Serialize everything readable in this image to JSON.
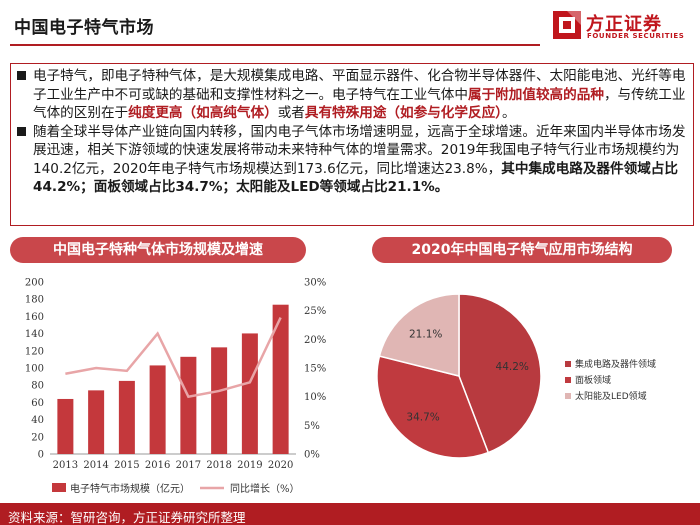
{
  "header": {
    "title": "中国电子特气市场",
    "logo_cn": "方正证券",
    "logo_en": "FOUNDER SECURITIES"
  },
  "bullets": [
    {
      "runs": [
        {
          "t": "电子特气，即电子特种气体，是大规模集成电路、平面显示器件、化合物半导体器件、太阳能电池、光纤等电子工业生产中不可或缺的基础和支撑性材料之一。电子特气在工业气体中",
          "s": ""
        },
        {
          "t": "属于附加值较高的品种",
          "s": "hl"
        },
        {
          "t": "，与传统工业气体的区别在于",
          "s": ""
        },
        {
          "t": "纯度更高（如高纯气体）",
          "s": "hl"
        },
        {
          "t": "或者",
          "s": ""
        },
        {
          "t": "具有特殊用途（如参与化学反应）",
          "s": "hl"
        },
        {
          "t": "。",
          "s": ""
        }
      ]
    },
    {
      "runs": [
        {
          "t": "随着全球半导体产业链向国内转移，国内电子气体市场增速明显，远高于全球增速。近年来国内半导体市场发展迅速，相关下游领域的快速发展将带动未来特种气体的增量需求。2019年我国电子特气行业市场规模约为140.2亿元，2020年电子特气市场规模达到173.6亿元，同比增速达23.8%，",
          "s": ""
        },
        {
          "t": "其中集成电路及器件领域占比44.2%；面板领域占比34.7%；太阳能及LED等领域占比21.1%。",
          "s": "bd"
        }
      ]
    }
  ],
  "left_chart_title": "中国电子特种气体市场规模及增速",
  "right_chart_title": "2020年中国电子特气应用市场结构",
  "chart_data": [
    {
      "type": "bar",
      "categories": [
        "2013",
        "2014",
        "2015",
        "2016",
        "2017",
        "2018",
        "2019",
        "2020"
      ],
      "series": [
        {
          "name": "电子特气市场规模（亿元）",
          "type": "bar",
          "axis": "left",
          "values": [
            64,
            74,
            85,
            103,
            113,
            124,
            140.2,
            173.6
          ]
        },
        {
          "name": "同比增长（%）",
          "type": "line",
          "axis": "right",
          "values": [
            14,
            15,
            14.5,
            21,
            10,
            11,
            12.5,
            23.8
          ]
        }
      ],
      "yticks_left": [
        "0",
        "20",
        "40",
        "60",
        "80",
        "100",
        "120",
        "140",
        "160",
        "180",
        "200"
      ],
      "yticks_right": [
        "0%",
        "5%",
        "10%",
        "15%",
        "20%",
        "25%",
        "30%"
      ],
      "ylim_left": [
        0,
        200
      ],
      "ylim_right": [
        0,
        30
      ],
      "legend_position": "bottom",
      "colors": {
        "bar": "#c4383c",
        "line": "#e8a5a7"
      }
    },
    {
      "type": "pie",
      "slices": [
        {
          "label": "集成电路及器件领域",
          "value": 44.2,
          "display": "44.2%",
          "color": "#b83a3f"
        },
        {
          "label": "面板领域",
          "value": 34.7,
          "display": "34.7%",
          "color": "#c03a3f"
        },
        {
          "label": "太阳能及LED领域",
          "value": 21.1,
          "display": "21.1%",
          "color": "#e0b6b4"
        }
      ],
      "legend_position": "right"
    }
  ],
  "footer": {
    "source": "资料来源：智研咨询，方正证券研究所整理"
  }
}
